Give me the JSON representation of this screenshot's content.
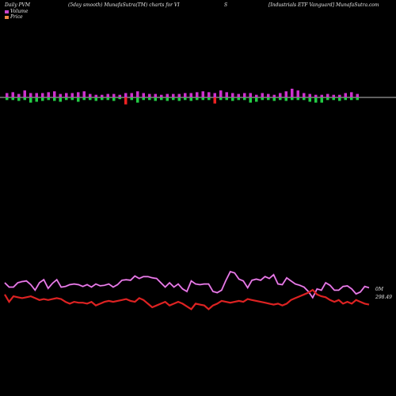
{
  "header": {
    "left": "Daily PVM",
    "mid": "(5day smooth) MunafaSutra(TM) charts for VI",
    "s": "S",
    "right": "[Industrials ETF Vanguard] MunafaSutra.com"
  },
  "legend": [
    {
      "label": "Volume",
      "color": "#cc44cc"
    },
    {
      "label": "Price",
      "color": "#ee8844"
    }
  ],
  "chart_data": {
    "type": "line",
    "volume_bars": [
      {
        "up": 0.5,
        "down": 0.3
      },
      {
        "up": 0.6,
        "down": 0.3
      },
      {
        "up": 0.4,
        "down": 0.4
      },
      {
        "up": 0.8,
        "down": 0.3
      },
      {
        "up": 0.5,
        "down": 0.6
      },
      {
        "up": 0.5,
        "down": 0.5
      },
      {
        "up": 0.5,
        "down": 0.4
      },
      {
        "up": 0.6,
        "down": 0.3
      },
      {
        "up": 0.7,
        "down": 0.4
      },
      {
        "up": 0.4,
        "down": 0.5
      },
      {
        "up": 0.5,
        "down": 0.3
      },
      {
        "up": 0.5,
        "down": 0.3
      },
      {
        "up": 0.6,
        "down": 0.5
      },
      {
        "up": 0.7,
        "down": 0.3
      },
      {
        "up": 0.4,
        "down": 0.3
      },
      {
        "up": 0.3,
        "down": 0.4
      },
      {
        "up": 0.3,
        "down": 0.3
      },
      {
        "up": 0.4,
        "down": 0.3
      },
      {
        "up": 0.4,
        "down": 0.4
      },
      {
        "up": 0.3,
        "down": 0.2
      },
      {
        "up": 0.5,
        "down": 0.8
      },
      {
        "up": 0.5,
        "down": 0.3
      },
      {
        "up": 0.7,
        "down": 0.6
      },
      {
        "up": 0.5,
        "down": 0.3
      },
      {
        "up": 0.4,
        "down": 0.3
      },
      {
        "up": 0.4,
        "down": 0.4
      },
      {
        "up": 0.3,
        "down": 0.3
      },
      {
        "up": 0.4,
        "down": 0.4
      },
      {
        "up": 0.4,
        "down": 0.3
      },
      {
        "up": 0.4,
        "down": 0.4
      },
      {
        "up": 0.5,
        "down": 0.3
      },
      {
        "up": 0.5,
        "down": 0.4
      },
      {
        "up": 0.6,
        "down": 0.3
      },
      {
        "up": 0.7,
        "down": 0.3
      },
      {
        "up": 0.6,
        "down": 0.3
      },
      {
        "up": 0.5,
        "down": 0.7
      },
      {
        "up": 0.8,
        "down": 0.3
      },
      {
        "up": 0.6,
        "down": 0.3
      },
      {
        "up": 0.5,
        "down": 0.4
      },
      {
        "up": 0.4,
        "down": 0.3
      },
      {
        "up": 0.5,
        "down": 0.3
      },
      {
        "up": 0.5,
        "down": 0.6
      },
      {
        "up": 0.3,
        "down": 0.5
      },
      {
        "up": 0.5,
        "down": 0.3
      },
      {
        "up": 0.4,
        "down": 0.3
      },
      {
        "up": 0.3,
        "down": 0.4
      },
      {
        "up": 0.5,
        "down": 0.3
      },
      {
        "up": 0.7,
        "down": 0.4
      },
      {
        "up": 1.0,
        "down": 0.3
      },
      {
        "up": 0.8,
        "down": 0.3
      },
      {
        "up": 0.5,
        "down": 0.3
      },
      {
        "up": 0.4,
        "down": 0.5
      },
      {
        "up": 0.3,
        "down": 0.6
      },
      {
        "up": 0.3,
        "down": 0.6
      },
      {
        "up": 0.4,
        "down": 0.3
      },
      {
        "up": 0.3,
        "down": 0.3
      },
      {
        "up": 0.3,
        "down": 0.4
      },
      {
        "up": 0.5,
        "down": 0.3
      },
      {
        "up": 0.6,
        "down": 0.3
      },
      {
        "up": 0.4,
        "down": 0.3
      }
    ],
    "volume_line": [
      62,
      55,
      55,
      62,
      64,
      65,
      59,
      50,
      62,
      67,
      53,
      61,
      67,
      55,
      56,
      59,
      60,
      59,
      56,
      59,
      55,
      60,
      57,
      58,
      60,
      55,
      59,
      66,
      67,
      66,
      73,
      69,
      72,
      72,
      70,
      69,
      62,
      55,
      62,
      55,
      60,
      52,
      48,
      65,
      60,
      59,
      60,
      60,
      48,
      46,
      50,
      66,
      80,
      78,
      68,
      65,
      54,
      66,
      68,
      66,
      72,
      69,
      75,
      60,
      59,
      70,
      65,
      60,
      58,
      55,
      48,
      38,
      52,
      50,
      62,
      58,
      50,
      50,
      56,
      57,
      52,
      44,
      47,
      56,
      54
    ],
    "price_line": [
      60,
      52,
      58,
      57,
      56,
      57,
      58,
      56,
      54,
      55,
      54,
      55,
      56,
      55,
      52,
      50,
      52,
      51,
      51,
      50,
      52,
      48,
      50,
      52,
      53,
      52,
      53,
      54,
      55,
      53,
      52,
      56,
      54,
      50,
      46,
      48,
      50,
      52,
      48,
      50,
      52,
      50,
      47,
      44,
      50,
      49,
      48,
      44,
      48,
      50,
      53,
      52,
      51,
      52,
      53,
      52,
      55,
      54,
      53,
      52,
      51,
      50,
      49,
      50,
      48,
      50,
      54,
      56,
      58,
      60,
      62,
      65,
      60,
      58,
      57,
      54,
      52,
      54,
      50,
      52,
      50,
      54,
      52,
      50,
      49
    ],
    "annotations": [
      "0M",
      "298.49"
    ]
  }
}
